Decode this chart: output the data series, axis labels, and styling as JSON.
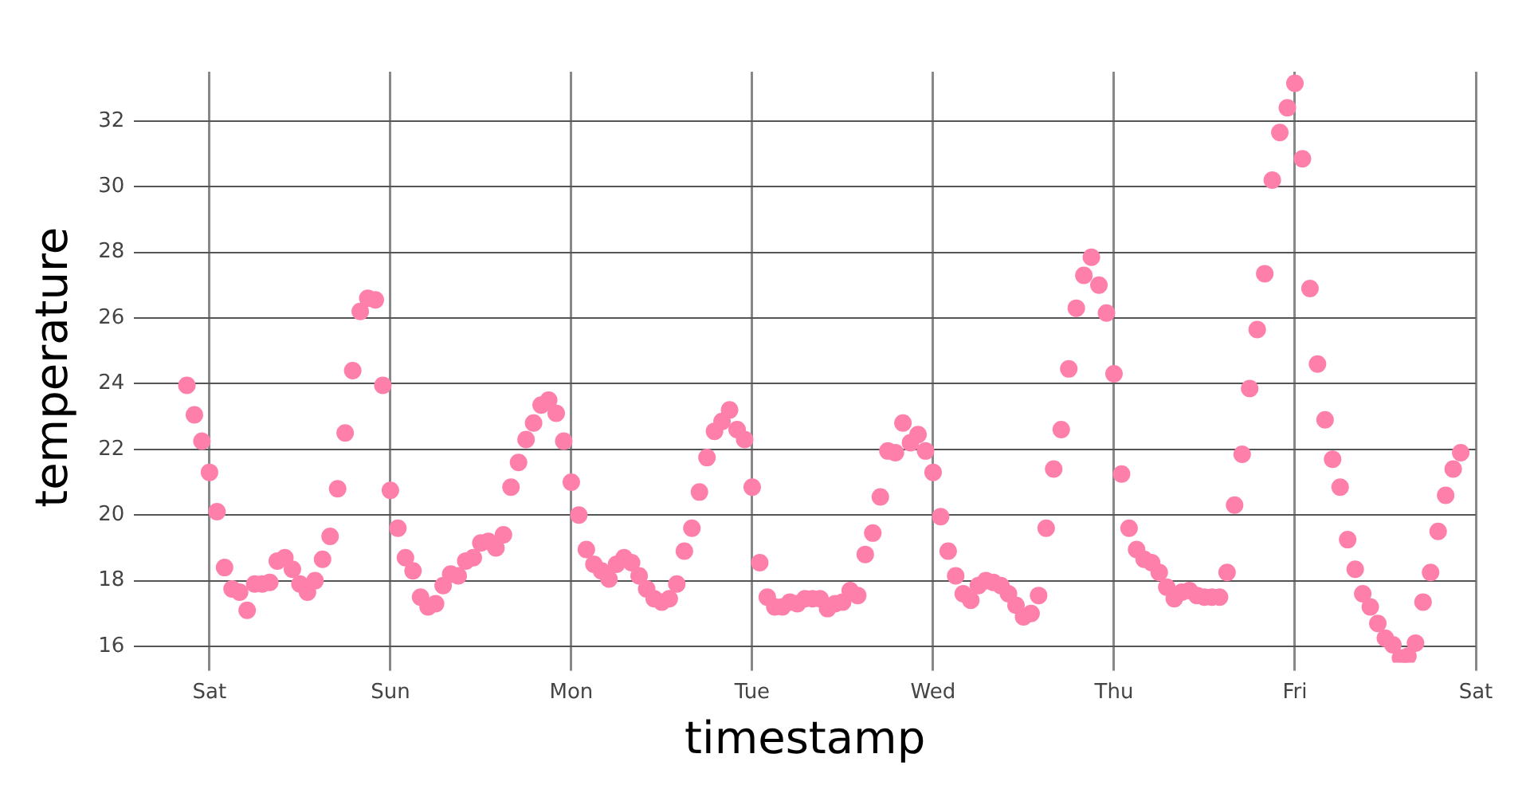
{
  "chart_data": {
    "type": "scatter",
    "xlabel": "timestamp",
    "ylabel": "temperature",
    "grid": true,
    "marker": "circle",
    "categories": [
      null,
      null,
      null,
      null,
      null,
      null,
      null,
      null,
      null,
      null,
      "Sat",
      null,
      null,
      null,
      null,
      null,
      null,
      null,
      null,
      null,
      null,
      null,
      null,
      null,
      null,
      null,
      null,
      null,
      null,
      null,
      null,
      null,
      null,
      null,
      "Sun",
      null,
      null,
      null,
      null,
      null,
      null,
      null,
      null,
      null,
      null,
      null,
      null,
      null,
      null,
      null,
      null,
      null,
      null,
      null,
      null,
      null,
      null,
      null,
      "Mon",
      null,
      null,
      null,
      null,
      null,
      null,
      null,
      null,
      null,
      null,
      null,
      null,
      null,
      null,
      null,
      null,
      null,
      null,
      null,
      null,
      null,
      null,
      null,
      "Tue",
      null,
      null,
      null,
      null,
      null,
      null,
      null,
      null,
      null,
      null,
      null,
      null,
      null,
      null,
      null,
      null,
      null,
      null,
      null,
      null,
      null,
      null,
      null,
      "Wed",
      null,
      null,
      null,
      null,
      null,
      null,
      null,
      null,
      null,
      null,
      null,
      null,
      null,
      null,
      null,
      null,
      null,
      null,
      null,
      null,
      null,
      null,
      null,
      "Thu",
      null,
      null,
      null,
      null,
      null,
      null,
      null,
      null,
      null,
      null,
      null,
      null,
      null,
      null,
      null,
      null,
      null,
      null,
      null,
      null,
      null,
      null,
      null,
      "Fri",
      null,
      null,
      null,
      null,
      null,
      null,
      null,
      null,
      null,
      null,
      null,
      null,
      null,
      null,
      null,
      null,
      null,
      null,
      null,
      null,
      null,
      null,
      null,
      "Sat"
    ],
    "ylim": [
      15.5,
      33.5
    ],
    "yticks": [
      16,
      18,
      20,
      22,
      24,
      26,
      28,
      30,
      32
    ],
    "series": [
      {
        "color": "#ff7fab",
        "values": [
          null,
          null,
          null,
          null,
          null,
          null,
          null,
          23.95,
          23.05,
          22.25,
          21.3,
          20.1,
          18.4,
          17.75,
          17.65,
          17.1,
          17.9,
          17.9,
          17.95,
          18.6,
          18.7,
          18.35,
          17.9,
          17.65,
          18.0,
          18.65,
          19.35,
          20.8,
          22.5,
          24.4,
          26.2,
          26.6,
          26.55,
          23.95,
          20.75,
          19.6,
          18.7,
          18.3,
          17.5,
          17.2,
          17.3,
          17.85,
          18.2,
          18.15,
          18.6,
          18.7,
          19.15,
          19.2,
          19.0,
          19.4,
          20.85,
          21.6,
          22.3,
          22.8,
          23.35,
          23.5,
          23.1,
          22.25,
          21.0,
          20.0,
          18.95,
          18.5,
          18.3,
          18.05,
          18.5,
          18.7,
          18.55,
          18.15,
          17.75,
          17.45,
          17.35,
          17.45,
          17.9,
          18.9,
          19.6,
          20.7,
          21.75,
          22.55,
          22.85,
          23.2,
          22.6,
          22.3,
          20.85,
          18.55,
          17.5,
          17.2,
          17.2,
          17.35,
          17.3,
          17.45,
          17.45,
          17.45,
          17.15,
          17.3,
          17.35,
          17.7,
          17.55,
          18.8,
          19.45,
          20.55,
          21.95,
          21.9,
          22.8,
          22.2,
          22.45,
          21.95,
          21.3,
          19.95,
          18.9,
          18.15,
          17.6,
          17.4,
          17.85,
          18.0,
          17.95,
          17.85,
          17.6,
          17.25,
          16.9,
          17.0,
          17.55,
          19.6,
          21.4,
          22.6,
          24.45,
          26.3,
          27.3,
          27.85,
          27.0,
          26.15,
          24.3,
          21.25,
          19.6,
          18.95,
          18.65,
          18.55,
          18.25,
          17.8,
          17.45,
          17.65,
          17.7,
          17.55,
          17.5,
          17.5,
          17.5,
          18.25,
          20.3,
          21.85,
          23.85,
          25.65,
          27.35,
          30.2,
          31.65,
          32.4,
          33.15,
          30.85,
          26.9,
          24.6,
          22.9,
          21.7,
          20.85,
          19.25,
          18.35,
          17.6,
          17.2,
          16.7,
          16.25,
          16.05,
          15.65,
          15.7,
          16.1,
          17.35,
          18.25,
          19.5,
          20.6,
          21.4,
          21.9,
          null,
          null
        ]
      }
    ]
  }
}
